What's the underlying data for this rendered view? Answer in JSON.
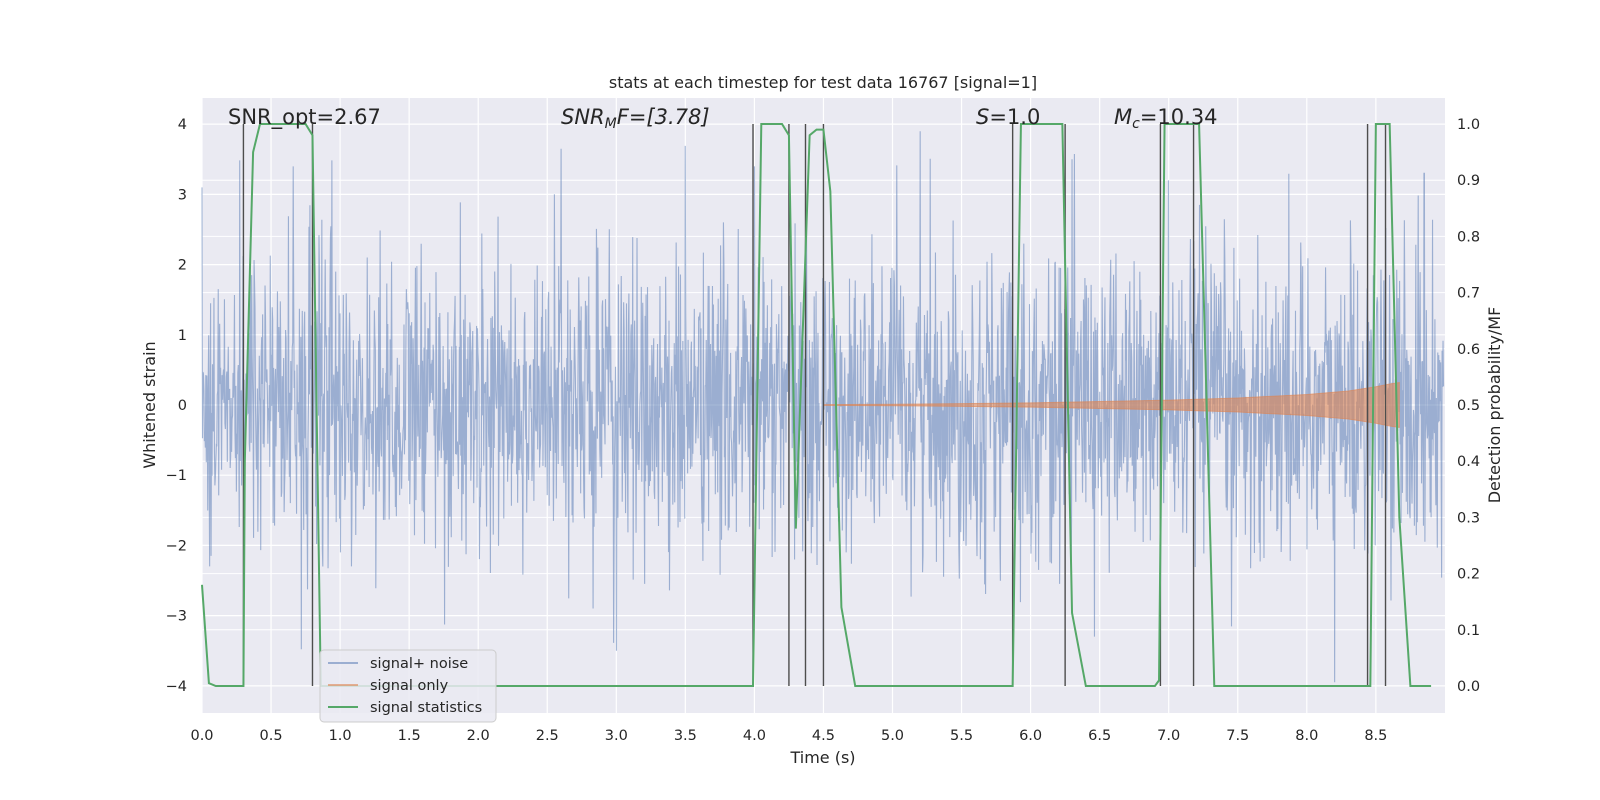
{
  "chart_data": {
    "type": "line",
    "title": "stats at each timestep for test data 16767 [signal=1]",
    "xlabel": "Time (s)",
    "ylabel_left": "Whitened strain",
    "ylabel_right": "Detection probability/MF",
    "xlim": [
      0.0,
      9.0
    ],
    "ylim_left": [
      -4.4,
      4.4
    ],
    "ylim_right": [
      -0.04,
      1.04
    ],
    "x_ticks": [
      "0.0",
      "0.5",
      "1.0",
      "1.5",
      "2.0",
      "2.5",
      "3.0",
      "3.5",
      "4.0",
      "4.5",
      "5.0",
      "5.5",
      "6.0",
      "6.5",
      "7.0",
      "7.5",
      "8.0",
      "8.5"
    ],
    "y_ticks_left": [
      "−4",
      "−3",
      "−2",
      "−1",
      "0",
      "1",
      "2",
      "3",
      "4"
    ],
    "y_ticks_right": [
      "0.0",
      "0.1",
      "0.2",
      "0.3",
      "0.4",
      "0.5",
      "0.6",
      "0.7",
      "0.8",
      "0.9",
      "1.0"
    ],
    "annotations": {
      "snr_opt": "SNR_opt=2.67",
      "snr_mf_main": "SNR",
      "snr_mf_sub": "M",
      "snr_mf_rest": "F=[3.78]",
      "s_main": "S",
      "s_rest": "=1.0",
      "mc_main": "M",
      "mc_sub": "c",
      "mc_rest": "=10.34"
    },
    "legend": {
      "placement": "lower left",
      "entries": [
        {
          "label": "signal+ noise",
          "color": "#4c72b0"
        },
        {
          "label": "signal only",
          "color": "#dd8452"
        },
        {
          "label": "signal statistics",
          "color": "#55a868"
        }
      ]
    },
    "series": [
      {
        "name": "signal+ noise",
        "color": "#4c72b0",
        "description_value": "whitened strain noise, approx. range -4 to 4",
        "peak_x": [
          0.0,
          0.66,
          2.6,
          3.0,
          4.0,
          5.2,
          6.3,
          7.0,
          8.2,
          8.85
        ],
        "peak_y": [
          3.1,
          3.4,
          3.65,
          -3.5,
          3.4,
          3.9,
          3.5,
          3.2,
          -3.95,
          3.3
        ]
      },
      {
        "name": "signal only",
        "color": "#dd8452",
        "x": [
          4.5,
          5.0,
          5.5,
          6.0,
          6.5,
          7.0,
          7.5,
          8.0,
          8.3,
          8.5,
          8.6,
          8.67
        ],
        "amplitude": [
          0.005,
          0.01,
          0.02,
          0.03,
          0.05,
          0.07,
          0.1,
          0.15,
          0.2,
          0.26,
          0.3,
          0.32
        ]
      },
      {
        "name": "signal statistics",
        "color": "#55a868",
        "x": [
          0.0,
          0.05,
          0.1,
          0.2,
          0.3,
          0.31,
          0.37,
          0.42,
          0.45,
          0.6,
          0.75,
          0.8,
          0.86,
          0.95,
          1.5,
          2.0,
          3.0,
          3.99,
          4.05,
          4.1,
          4.2,
          4.25,
          4.3,
          4.4,
          4.45,
          4.5,
          4.55,
          4.63,
          4.73,
          4.8,
          5.0,
          5.5,
          5.87,
          5.93,
          6.0,
          6.1,
          6.23,
          6.3,
          6.4,
          6.5,
          6.9,
          6.93,
          6.97,
          7.05,
          7.15,
          7.22,
          7.33,
          7.5,
          8.0,
          8.46,
          8.5,
          8.6,
          8.67,
          8.75,
          8.9
        ],
        "y": [
          0.18,
          0.005,
          0.0,
          0.0,
          0.0,
          0.4,
          0.95,
          1.0,
          1.0,
          1.0,
          1.0,
          0.98,
          0.0,
          0.0,
          0.0,
          0.0,
          0.0,
          0.0,
          1.0,
          1.0,
          1.0,
          0.98,
          0.28,
          0.98,
          0.99,
          0.99,
          0.88,
          0.14,
          0.0,
          0.0,
          0.0,
          0.0,
          0.0,
          1.0,
          1.0,
          1.0,
          1.0,
          0.13,
          0.0,
          0.0,
          0.0,
          0.01,
          1.0,
          1.0,
          1.0,
          1.0,
          0.0,
          0.0,
          0.0,
          0.0,
          1.0,
          1.0,
          0.3,
          0.0,
          0.0
        ]
      }
    ],
    "vertical_lines": {
      "color": "#4d4d4d",
      "x": [
        0.3,
        0.8,
        3.99,
        4.25,
        4.37,
        4.5,
        5.87,
        6.25,
        6.94,
        7.18,
        8.44,
        8.57
      ]
    }
  }
}
